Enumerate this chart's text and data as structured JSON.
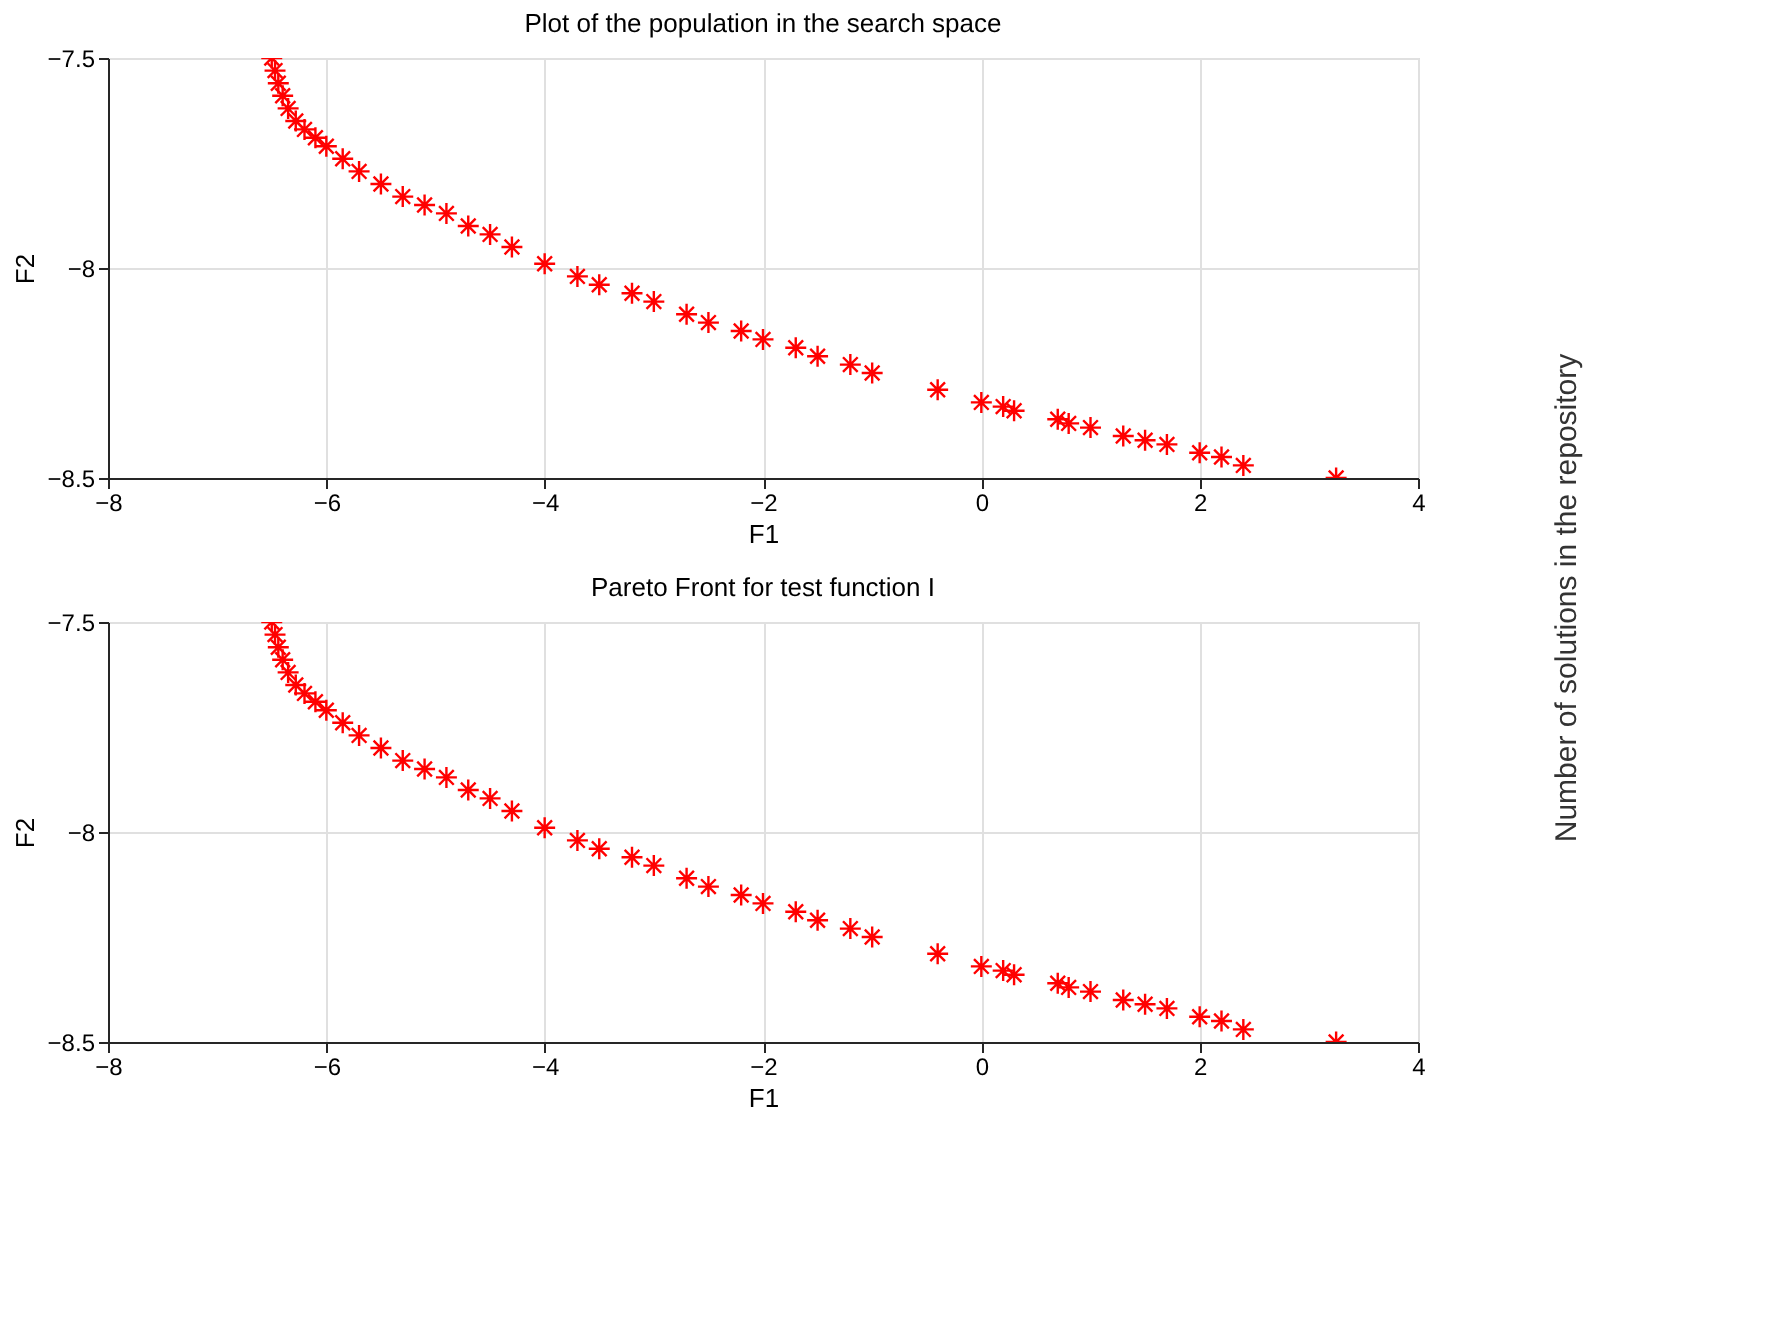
{
  "chart_data": [
    {
      "type": "scatter",
      "title": "Plot of the population in the search space",
      "xlabel": "F1",
      "ylabel": "F2",
      "xlim": [
        -8,
        4
      ],
      "ylim": [
        -8.5,
        -7.5
      ],
      "xticks": [
        -8,
        -6,
        -4,
        -2,
        0,
        2,
        4
      ],
      "yticks": [
        -8.5,
        -8,
        -7.5
      ],
      "grid": true,
      "marker": "cross",
      "series": [
        {
          "color": "#ff0000",
          "x": [
            -6.5,
            -6.47,
            -6.44,
            -6.4,
            -6.35,
            -6.28,
            -6.2,
            -6.1,
            -6.0,
            -5.85,
            -5.7,
            -5.5,
            -5.3,
            -5.1,
            -4.9,
            -4.7,
            -4.5,
            -4.3,
            -4.0,
            -3.7,
            -3.5,
            -3.2,
            -3.0,
            -2.7,
            -2.5,
            -2.2,
            -2.0,
            -1.7,
            -1.5,
            -1.2,
            -1.0,
            -0.4,
            0.0,
            0.2,
            0.3,
            0.7,
            0.8,
            1.0,
            1.3,
            1.5,
            1.7,
            2.0,
            2.2,
            2.4,
            3.25
          ],
          "values": [
            -7.5,
            -7.53,
            -7.56,
            -7.59,
            -7.62,
            -7.65,
            -7.67,
            -7.69,
            -7.71,
            -7.74,
            -7.77,
            -7.8,
            -7.83,
            -7.85,
            -7.87,
            -7.9,
            -7.92,
            -7.95,
            -7.99,
            -8.02,
            -8.04,
            -8.06,
            -8.08,
            -8.11,
            -8.13,
            -8.15,
            -8.17,
            -8.19,
            -8.21,
            -8.23,
            -8.25,
            -8.29,
            -8.32,
            -8.33,
            -8.34,
            -8.36,
            -8.37,
            -8.38,
            -8.4,
            -8.41,
            -8.42,
            -8.44,
            -8.45,
            -8.47,
            -8.5
          ]
        }
      ]
    },
    {
      "type": "scatter",
      "title": "Pareto Front for test function I",
      "xlabel": "F1",
      "ylabel": "F2",
      "xlim": [
        -8,
        4
      ],
      "ylim": [
        -8.5,
        -7.5
      ],
      "xticks": [
        -8,
        -6,
        -4,
        -2,
        0,
        2,
        4
      ],
      "yticks": [
        -8.5,
        -8,
        -7.5
      ],
      "grid": true,
      "marker": "cross",
      "series": [
        {
          "color": "#ff0000",
          "x": [
            -6.5,
            -6.47,
            -6.44,
            -6.4,
            -6.35,
            -6.28,
            -6.2,
            -6.1,
            -6.0,
            -5.85,
            -5.7,
            -5.5,
            -5.3,
            -5.1,
            -4.9,
            -4.7,
            -4.5,
            -4.3,
            -4.0,
            -3.7,
            -3.5,
            -3.2,
            -3.0,
            -2.7,
            -2.5,
            -2.2,
            -2.0,
            -1.7,
            -1.5,
            -1.2,
            -1.0,
            -0.4,
            0.0,
            0.2,
            0.3,
            0.7,
            0.8,
            1.0,
            1.3,
            1.5,
            1.7,
            2.0,
            2.2,
            2.4,
            3.25
          ],
          "values": [
            -7.5,
            -7.53,
            -7.56,
            -7.59,
            -7.62,
            -7.65,
            -7.67,
            -7.69,
            -7.71,
            -7.74,
            -7.77,
            -7.8,
            -7.83,
            -7.85,
            -7.87,
            -7.9,
            -7.92,
            -7.95,
            -7.99,
            -8.02,
            -8.04,
            -8.06,
            -8.08,
            -8.11,
            -8.13,
            -8.15,
            -8.17,
            -8.19,
            -8.21,
            -8.23,
            -8.25,
            -8.29,
            -8.32,
            -8.33,
            -8.34,
            -8.36,
            -8.37,
            -8.38,
            -8.4,
            -8.41,
            -8.42,
            -8.44,
            -8.45,
            -8.47,
            -8.5
          ]
        }
      ]
    },
    {
      "type": "other",
      "ylabel": "Number of solutions in the repository"
    }
  ]
}
